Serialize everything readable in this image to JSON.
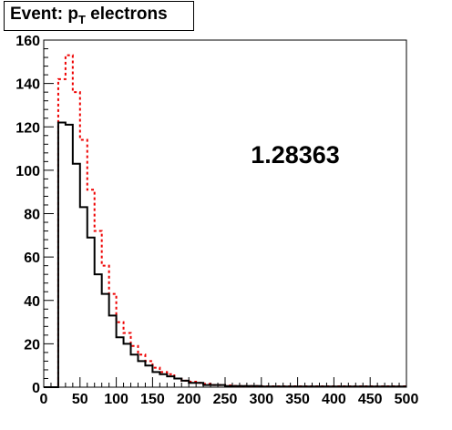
{
  "title": {
    "prefix": "Event: p",
    "subscript": "T",
    "suffix": " electrons"
  },
  "annotation": "1.28363",
  "colors": {
    "series_black": "#000000",
    "series_red": "#ee0000",
    "axis": "#000000",
    "background": "#ffffff"
  },
  "chart_data": {
    "type": "histogram",
    "title": "Event: p_T electrons",
    "xlabel": "",
    "ylabel": "",
    "xlim": [
      0,
      500
    ],
    "ylim": [
      0,
      160
    ],
    "grid": false,
    "xticks": [
      0,
      50,
      100,
      150,
      200,
      250,
      300,
      350,
      400,
      450,
      500
    ],
    "yticks": [
      0,
      20,
      40,
      60,
      80,
      100,
      120,
      140,
      160
    ],
    "bin_width": 10,
    "bin_edges_start": 0,
    "series": [
      {
        "style": "solid",
        "color": "#000000",
        "values": [
          0,
          0,
          122,
          121,
          103,
          83,
          69,
          52,
          43,
          33,
          23,
          20,
          15,
          12,
          10,
          7,
          6,
          5,
          4,
          3,
          2,
          2,
          1,
          1,
          1,
          0.5,
          0.5,
          0.5,
          0.5,
          0.5,
          0.3,
          0.3,
          0.3,
          0.3,
          0.3,
          0.3,
          0.3,
          0.3,
          0.3,
          0.3,
          0.3,
          0.3,
          0.3,
          0.3,
          0.3,
          0.3,
          0.3,
          0.3,
          0.3,
          0.3
        ]
      },
      {
        "style": "dashed",
        "color": "#ee0000",
        "values": [
          0,
          0,
          142,
          153,
          136,
          114,
          91,
          72,
          56,
          43,
          30,
          25,
          19,
          15,
          12,
          9,
          7,
          6,
          4,
          3,
          2.5,
          2,
          1.5,
          1,
          1,
          0.8,
          0.6,
          0.5,
          0.5,
          0.5,
          0.4,
          0.4,
          0.4,
          0.4,
          0.4,
          0.4,
          0.4,
          0.4,
          0.4,
          0.4,
          0.4,
          0.4,
          0.4,
          0.4,
          0.4,
          0.4,
          0.4,
          0.4,
          0.4,
          0.4
        ]
      }
    ]
  }
}
